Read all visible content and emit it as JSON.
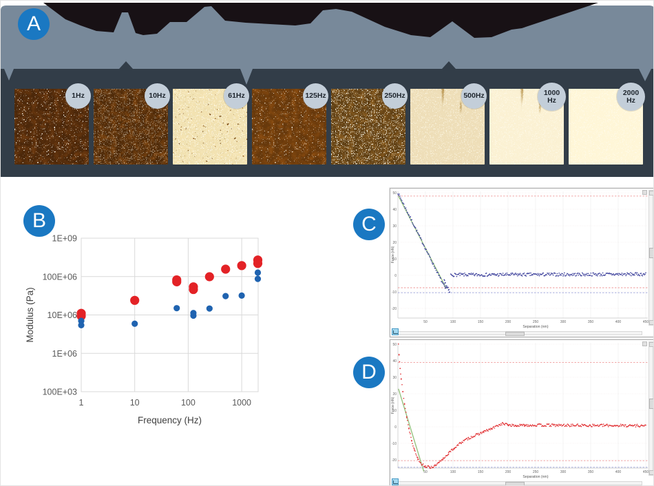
{
  "panel_labels": {
    "a": "A",
    "b": "B",
    "c": "C",
    "d": "D"
  },
  "colors": {
    "banner_gray": "#78899a",
    "banner_black": "#181115",
    "strip_dark": "#323d48",
    "label_circle_blue": "#1a78c2",
    "badge_bg": "#c3ced9",
    "red_series": "#e32226",
    "blue_series": "#1f63b0",
    "green_fit": "#8cbb72"
  },
  "afm": {
    "tiles": [
      {
        "freq_label": "1Hz",
        "lines": [
          "1Hz"
        ],
        "base": "#6e3a0f",
        "texture": "speckle-sparse"
      },
      {
        "freq_label": "10Hz",
        "lines": [
          "10Hz"
        ],
        "base": "#7b430f",
        "texture": "speckle-fine"
      },
      {
        "freq_label": "61Hz",
        "lines": [
          "61Hz"
        ],
        "base": "#95560f",
        "texture": "blocky"
      },
      {
        "freq_label": "125Hz",
        "lines": [
          "125Hz"
        ],
        "base": "#8a4c10",
        "texture": "smooth"
      },
      {
        "freq_label": "250Hz",
        "lines": [
          "250Hz"
        ],
        "base": "#8a5c1e",
        "texture": "speckle-dense"
      },
      {
        "freq_label": "500Hz",
        "lines": [
          "500Hz"
        ],
        "base": "#a87c2c",
        "texture": "streaky-light"
      },
      {
        "freq_label": "1000 Hz",
        "lines": [
          "1000",
          "Hz"
        ],
        "base": "#ab8232",
        "texture": "streaky"
      },
      {
        "freq_label": "2000 Hz",
        "lines": [
          "2000",
          "Hz"
        ],
        "base": "#b08735",
        "texture": "streaky-strong"
      }
    ]
  },
  "chart_data": [
    {
      "id": "modulus-vs-frequency",
      "type": "scatter",
      "title": "",
      "xlabel": "Frequency (Hz)",
      "ylabel": "Modulus (Pa)",
      "x_scale": "log",
      "y_scale": "log",
      "xlim": [
        1,
        2300
      ],
      "ylim": [
        100000.0,
        1000000000.0
      ],
      "x_ticks": [
        "1",
        "10",
        "100",
        "1000"
      ],
      "x_tick_values": [
        1,
        10,
        100,
        1000
      ],
      "y_ticks": [
        "100E+03",
        "1E+06",
        "10E+06",
        "100E+06",
        "1E+09"
      ],
      "y_tick_values": [
        100000.0,
        1000000.0,
        10000000.0,
        100000000.0,
        1000000000.0
      ],
      "grid": true,
      "legend": "none",
      "series": [
        {
          "name": "red",
          "color": "#e32226",
          "marker_px": 6.6,
          "points": [
            [
              1,
              11000000.0
            ],
            [
              1,
              9400000.0
            ],
            [
              10,
              24000000.0
            ],
            [
              61,
              82000000.0
            ],
            [
              61,
              73000000.0
            ],
            [
              125,
              54000000.0
            ],
            [
              125,
              46000000.0
            ],
            [
              250,
              99000000.0
            ],
            [
              500,
              156000000.0
            ],
            [
              1000,
              193000000.0
            ],
            [
              2000,
              270000000.0
            ],
            [
              2000,
              220000000.0
            ]
          ]
        },
        {
          "name": "blue",
          "color": "#1f63b0",
          "marker_px": 4.6,
          "points": [
            [
              1,
              7000000.0
            ],
            [
              1,
              5400000.0
            ],
            [
              10,
              5900000.0
            ],
            [
              61,
              15000000.0
            ],
            [
              125,
              11200000.0
            ],
            [
              125,
              9600000.0
            ],
            [
              250,
              14700000.0
            ],
            [
              500,
              31000000.0
            ],
            [
              1000,
              32000000.0
            ],
            [
              2000,
              127000000.0
            ],
            [
              2000,
              87000000.0
            ]
          ]
        }
      ]
    },
    {
      "id": "force-curve-c",
      "type": "scatter",
      "xlabel": "Separation (nm)",
      "ylabel": "Force (nN)",
      "xlim": [
        0,
        500
      ],
      "ylim": [
        -32,
        52
      ],
      "x_ticks": [
        50,
        100,
        150,
        200,
        250,
        300,
        350,
        400,
        450
      ],
      "y_ticks": [
        50,
        40,
        30,
        20,
        10,
        0,
        -10,
        -20
      ],
      "color": "#3b3f9b",
      "guide_lines": {
        "red": [
          48,
          -7.5
        ],
        "blue": [
          -10.5
        ]
      },
      "fit_line": {
        "color": "#8cbb72",
        "from": [
          1,
          48
        ],
        "to": [
          88,
          -8
        ]
      },
      "paths": [
        {
          "pts": [
            [
              0,
              50
            ],
            [
              86,
              -8
            ]
          ],
          "step": 1.2,
          "jitter": 0.8
        },
        {
          "pts": [
            [
              84,
              -4
            ],
            [
              94,
              -10.5
            ]
          ],
          "step": 0.7,
          "jitter": 1.5
        },
        {
          "pts": [
            [
              96,
              0.3
            ],
            [
              450,
              0.7
            ]
          ],
          "step": 1.2,
          "jitter": 1.0
        }
      ]
    },
    {
      "id": "force-curve-d",
      "type": "scatter",
      "xlabel": "Separation (nm)",
      "ylabel": "Force (nN)",
      "xlim": [
        0,
        500
      ],
      "ylim": [
        -32,
        52
      ],
      "x_ticks": [
        50,
        100,
        150,
        200,
        250,
        300,
        350,
        400,
        450
      ],
      "y_ticks": [
        50,
        40,
        30,
        20,
        10,
        0,
        -10,
        -20
      ],
      "color": "#e02a2d",
      "guide_lines": {
        "red": [
          39,
          -20.5
        ],
        "blue": [
          -24.5
        ]
      },
      "fit_line": {
        "color": "#8cbb72",
        "from": [
          1,
          23
        ],
        "to": [
          47,
          -27
        ]
      },
      "paths": [
        {
          "pts": [
            [
              1,
              50
            ],
            [
              2,
              44
            ],
            [
              4,
              36
            ],
            [
              6,
              29
            ],
            [
              9,
              21
            ],
            [
              12,
              14
            ],
            [
              16,
              6
            ],
            [
              20,
              -1
            ],
            [
              25,
              -8
            ],
            [
              30,
              -14
            ],
            [
              36,
              -19
            ],
            [
              43,
              -22.5
            ],
            [
              50,
              -24
            ],
            [
              58,
              -24.5
            ],
            [
              66,
              -24
            ],
            [
              74,
              -22
            ],
            [
              82,
              -19.5
            ],
            [
              92,
              -16
            ],
            [
              102,
              -13
            ],
            [
              115,
              -9.5
            ],
            [
              128,
              -7
            ],
            [
              142,
              -5
            ],
            [
              156,
              -3
            ],
            [
              170,
              -1.2
            ],
            [
              182,
              0.8
            ],
            [
              190,
              2
            ],
            [
              200,
              1.2
            ],
            [
              215,
              0.6
            ],
            [
              230,
              1
            ]
          ],
          "step": 1.3,
          "jitter": 0.7
        },
        {
          "pts": [
            [
              230,
              1
            ],
            [
              450,
              0.7
            ]
          ],
          "step": 1.3,
          "jitter": 0.8
        }
      ]
    }
  ]
}
